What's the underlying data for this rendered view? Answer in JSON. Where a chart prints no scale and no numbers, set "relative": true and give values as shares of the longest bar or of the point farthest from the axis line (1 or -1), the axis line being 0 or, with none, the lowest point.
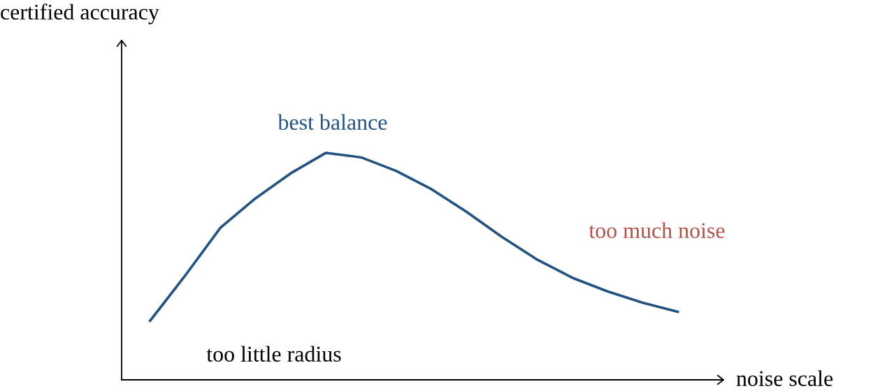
{
  "chart_data": {
    "type": "line",
    "relative": true,
    "xlabel": "noise scale",
    "categories": [
      null,
      null,
      null,
      null,
      null,
      null,
      null,
      null,
      null,
      null,
      null,
      null,
      null,
      null,
      null,
      null
    ],
    "series": [
      {
        "color": "#22527f",
        "values": [
          0.26,
          0.46,
          0.67,
          0.8,
          0.91,
          1,
          0.98,
          0.92,
          0.84,
          0.74,
          0.63,
          0.53,
          0.45,
          0.39,
          0.34,
          0.3
        ]
      }
    ],
    "annotations": [
      "certified accuracy",
      "best balance",
      "too much noise",
      "too little radius"
    ],
    "grid": false,
    "legend": false,
    "marker": "none",
    "line_style": "solid"
  }
}
